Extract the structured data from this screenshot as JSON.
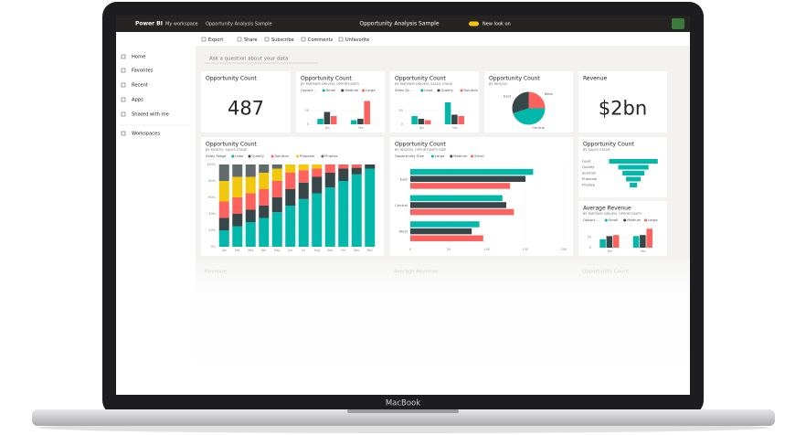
{
  "topbar": {
    "brand": "Power BI",
    "breadcrumb": [
      "My workspace",
      "Opportunity Analysis Sample"
    ],
    "report": "Opportunity Analysis Sample",
    "toggle": "New look on"
  },
  "nav": [
    "Home",
    "Favorites",
    "Recent",
    "Apps",
    "Shared with me",
    "Workspaces"
  ],
  "toolbar": [
    "Export",
    "Share",
    "Subscribe",
    "Comments",
    "Unfavorite"
  ],
  "qa": "Ask a question about your data",
  "tiles": [
    {
      "title": "Opportunity Count",
      "value": "487"
    },
    {
      "title": "Opportunity Count",
      "subtitle": "BY PARTNER DRIVEN, OPPORTUNITY",
      "chart": {
        "type": "bar",
        "legend_title": "Opport...",
        "categories": [
          "No",
          "Yes"
        ],
        "ylim": [
          0,
          100
        ],
        "yticks": [
          0,
          50
        ],
        "series": [
          {
            "name": "Small",
            "color": "#01b8aa",
            "values": [
              20,
              15
            ]
          },
          {
            "name": "Medium",
            "color": "#374649",
            "values": [
              45,
              20
            ]
          },
          {
            "name": "Large",
            "color": "#fd625e",
            "values": [
              30,
              85
            ]
          }
        ]
      }
    },
    {
      "title": "Opportunity Count",
      "subtitle": "BY PARTNER DRIVEN, SALES STAGE",
      "chart": {
        "type": "bar",
        "legend_title": "Sales St...",
        "categories": [
          "No",
          "Yes"
        ],
        "ylim": [
          0,
          100
        ],
        "yticks": [
          0,
          50
        ],
        "series": [
          {
            "name": "Lead",
            "color": "#01b8aa",
            "values": [
              30,
              80
            ]
          },
          {
            "name": "Qualify",
            "color": "#374649",
            "values": [
              20,
              35
            ]
          },
          {
            "name": "Solution",
            "color": "#fd625e",
            "values": [
              15,
              30
            ]
          }
        ]
      }
    },
    {
      "title": "Opportunity Count",
      "subtitle": "BY REGION",
      "chart": {
        "type": "pie",
        "categories": [
          "West",
          "Central",
          "East"
        ],
        "values": [
          25,
          45,
          30
        ],
        "colors": [
          "#fd625e",
          "#01b8aa",
          "#374649"
        ]
      }
    },
    {
      "title": "Revenue",
      "value": "$2bn"
    },
    {
      "title": "Opportunity Count",
      "subtitle": "BY MONTH, SALES STAGE",
      "chart": {
        "type": "stacked",
        "legend_title": "Sales Stage",
        "categories": [
          "Jan",
          "Feb",
          "Mar",
          "Apr",
          "May",
          "Jun",
          "Jul",
          "Aug",
          "Sep",
          "Oct",
          "Nov",
          "Dec"
        ],
        "ylim": [
          0,
          100
        ],
        "yticks": [
          {
            "value": 0,
            "label": "0%"
          },
          {
            "value": 20,
            "label": "20%"
          },
          {
            "value": 40,
            "label": "40%"
          },
          {
            "value": 60,
            "label": "60%"
          },
          {
            "value": 80,
            "label": "80%"
          },
          {
            "value": 100,
            "label": "100%"
          }
        ],
        "series": [
          {
            "name": "Lead",
            "color": "#01b8aa",
            "values": [
              20,
              25,
              30,
              35,
              42,
              50,
              58,
              65,
              72,
              80,
              88,
              95
            ]
          },
          {
            "name": "Qualify",
            "color": "#374649",
            "values": [
              15,
              15,
              15,
              15,
              18,
              20,
              20,
              20,
              18,
              15,
              8,
              5
            ]
          },
          {
            "name": "Solution",
            "color": "#fd625e",
            "values": [
              20,
              20,
              20,
              20,
              20,
              20,
              15,
              10,
              10,
              5,
              4,
              0
            ]
          },
          {
            "name": "Proposal",
            "color": "#f2c80f",
            "values": [
              25,
              25,
              20,
              20,
              15,
              10,
              7,
              5,
              0,
              0,
              0,
              0
            ]
          },
          {
            "name": "Finalize",
            "color": "#5f6b6d",
            "values": [
              20,
              15,
              15,
              10,
              5,
              0,
              0,
              0,
              0,
              0,
              0,
              0
            ]
          }
        ]
      }
    },
    {
      "title": "Opportunity Count",
      "subtitle": "BY REGION, OPPORTUNITY SIZE",
      "chart": {
        "type": "hbar",
        "legend_title": "Opportunity Size",
        "categories": [
          "East",
          "Central",
          "West"
        ],
        "xlim": [
          0,
          200
        ],
        "xticks": [
          0,
          50,
          100,
          150,
          200
        ],
        "series": [
          {
            "name": "Large",
            "color": "#01b8aa",
            "values": [
              160,
              120,
              90
            ]
          },
          {
            "name": "Medium",
            "color": "#374649",
            "values": [
              150,
              125,
              80
            ]
          },
          {
            "name": "Small",
            "color": "#fd625e",
            "values": [
              130,
              135,
              95
            ]
          }
        ]
      }
    },
    {
      "title": "Opportunity Count",
      "subtitle": "BY SALES STAGE",
      "chart": {
        "type": "funnel",
        "categories": [
          "Lead",
          "Qualify",
          "Solution",
          "Proposal",
          "Finalize"
        ],
        "values": [
          100,
          62,
          45,
          30,
          15
        ],
        "color": "#01b8aa"
      }
    },
    {
      "title": "Average Revenue",
      "subtitle": "BY PARTNER DRIVEN, OPPORTUNITY",
      "chart": {
        "type": "bar",
        "legend_title": "Opport...",
        "categories": [
          "No",
          "Yes"
        ],
        "ylim": [
          0,
          100
        ],
        "yticks": [
          0,
          50
        ],
        "series": [
          {
            "name": "Small",
            "color": "#01b8aa",
            "values": [
              40,
              55
            ]
          },
          {
            "name": "Medium",
            "color": "#374649",
            "values": [
              55,
              60
            ]
          },
          {
            "name": "Large",
            "color": "#fd625e",
            "values": [
              60,
              90
            ]
          }
        ]
      }
    }
  ],
  "faded": [
    "Revenue",
    "Average Revenue",
    "Opportunity Count"
  ],
  "device": "MacBook"
}
